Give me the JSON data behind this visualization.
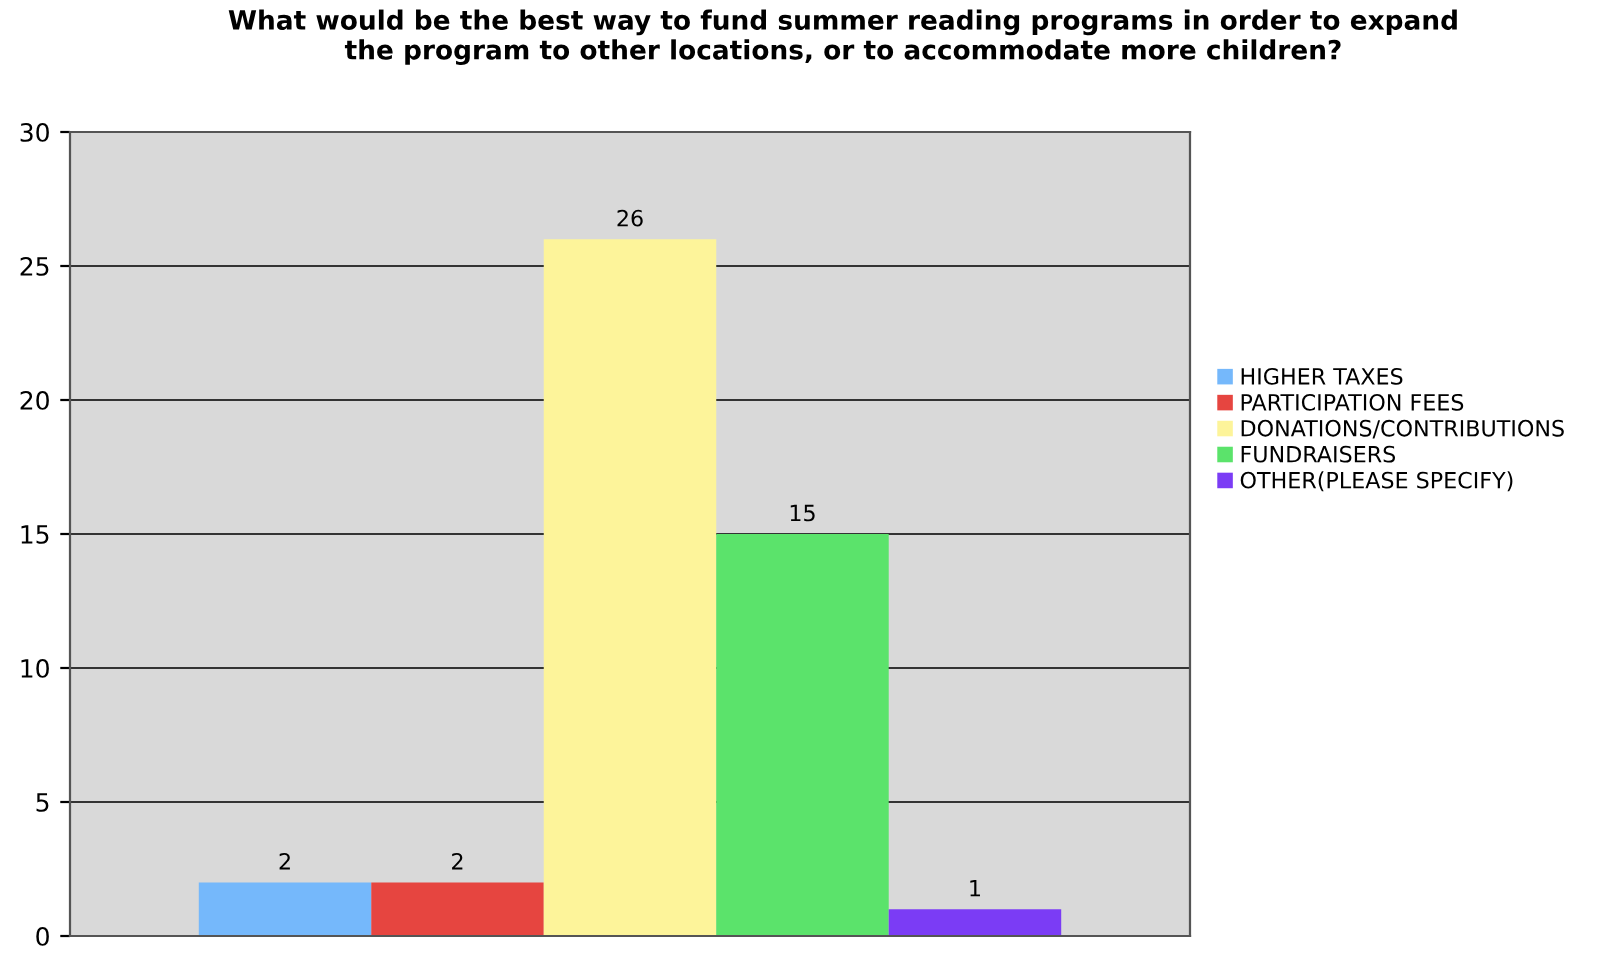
{
  "chart_data": {
    "type": "bar",
    "title": "What would be the best way to fund summer reading programs in order to expand\nthe program to other locations, or to accommodate more children?",
    "categories": [
      null
    ],
    "series": [
      {
        "name": "HIGHER TAXES",
        "color": "#75b8fb",
        "values": [
          2
        ]
      },
      {
        "name": "PARTICIPATION FEES",
        "color": "#e64540",
        "values": [
          2
        ]
      },
      {
        "name": "DONATIONS/CONTRIBUTIONS",
        "color": "#fdf49a",
        "values": [
          26
        ]
      },
      {
        "name": "FUNDRAISERS",
        "color": "#5be36b",
        "values": [
          15
        ]
      },
      {
        "name": "OTHER(PLEASE SPECIFY)",
        "color": "#7b3cf5",
        "values": [
          1
        ]
      }
    ],
    "ylim": [
      0,
      30
    ],
    "yticks": [
      0,
      5,
      10,
      15,
      20,
      25,
      30
    ],
    "grid": "y",
    "legend": "right",
    "data_labels": true,
    "tick_labels": "y"
  }
}
